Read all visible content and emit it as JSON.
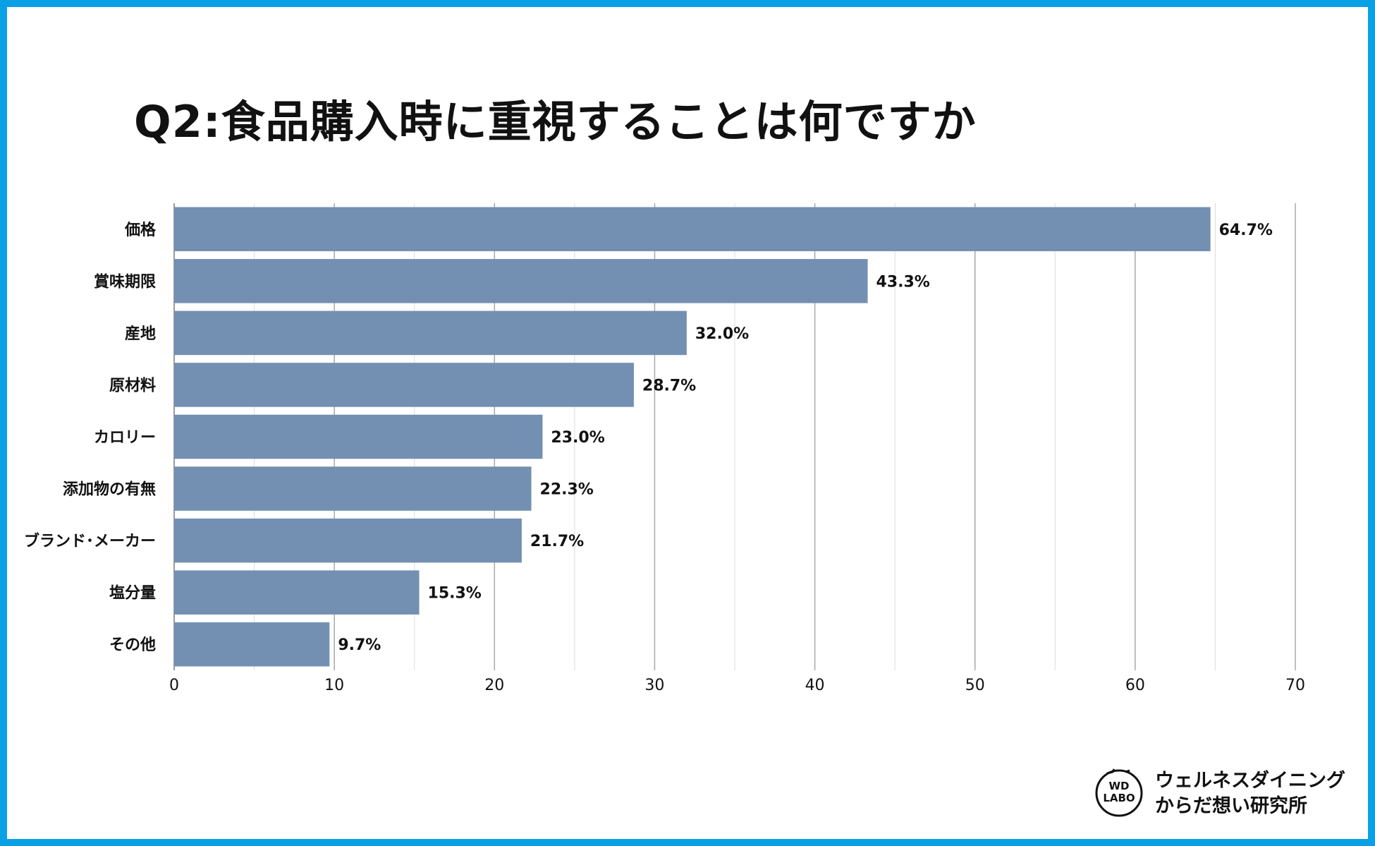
{
  "title": "Q2:食品購入時に重視することは何ですか",
  "chart_data": {
    "type": "bar",
    "orientation": "horizontal",
    "categories": [
      "価格",
      "賞味期限",
      "産地",
      "原材料",
      "カロリー",
      "添加物の有無",
      "ブランド･メーカー",
      "塩分量",
      "その他"
    ],
    "values": [
      64.7,
      43.3,
      32.0,
      28.7,
      23.0,
      22.3,
      21.7,
      15.3,
      9.7
    ],
    "value_labels": [
      "64.7%",
      "43.3%",
      "32.0%",
      "28.7%",
      "23.0%",
      "22.3%",
      "21.7%",
      "15.3%",
      "9.7%"
    ],
    "xlim": [
      0,
      70
    ],
    "xticks": [
      0,
      10,
      20,
      30,
      40,
      50,
      60,
      70
    ],
    "grid": true,
    "bar_color": "#7390b3",
    "title": "Q2:食品購入時に重視することは何ですか",
    "xlabel": "",
    "ylabel": ""
  },
  "logo": {
    "badge_line1": "WD",
    "badge_line2": "LABO",
    "line1": "ウェルネスダイニング",
    "line2": "からだ想い研究所"
  },
  "colors": {
    "frame": "#0aa0e6",
    "bar": "#7390b3"
  }
}
